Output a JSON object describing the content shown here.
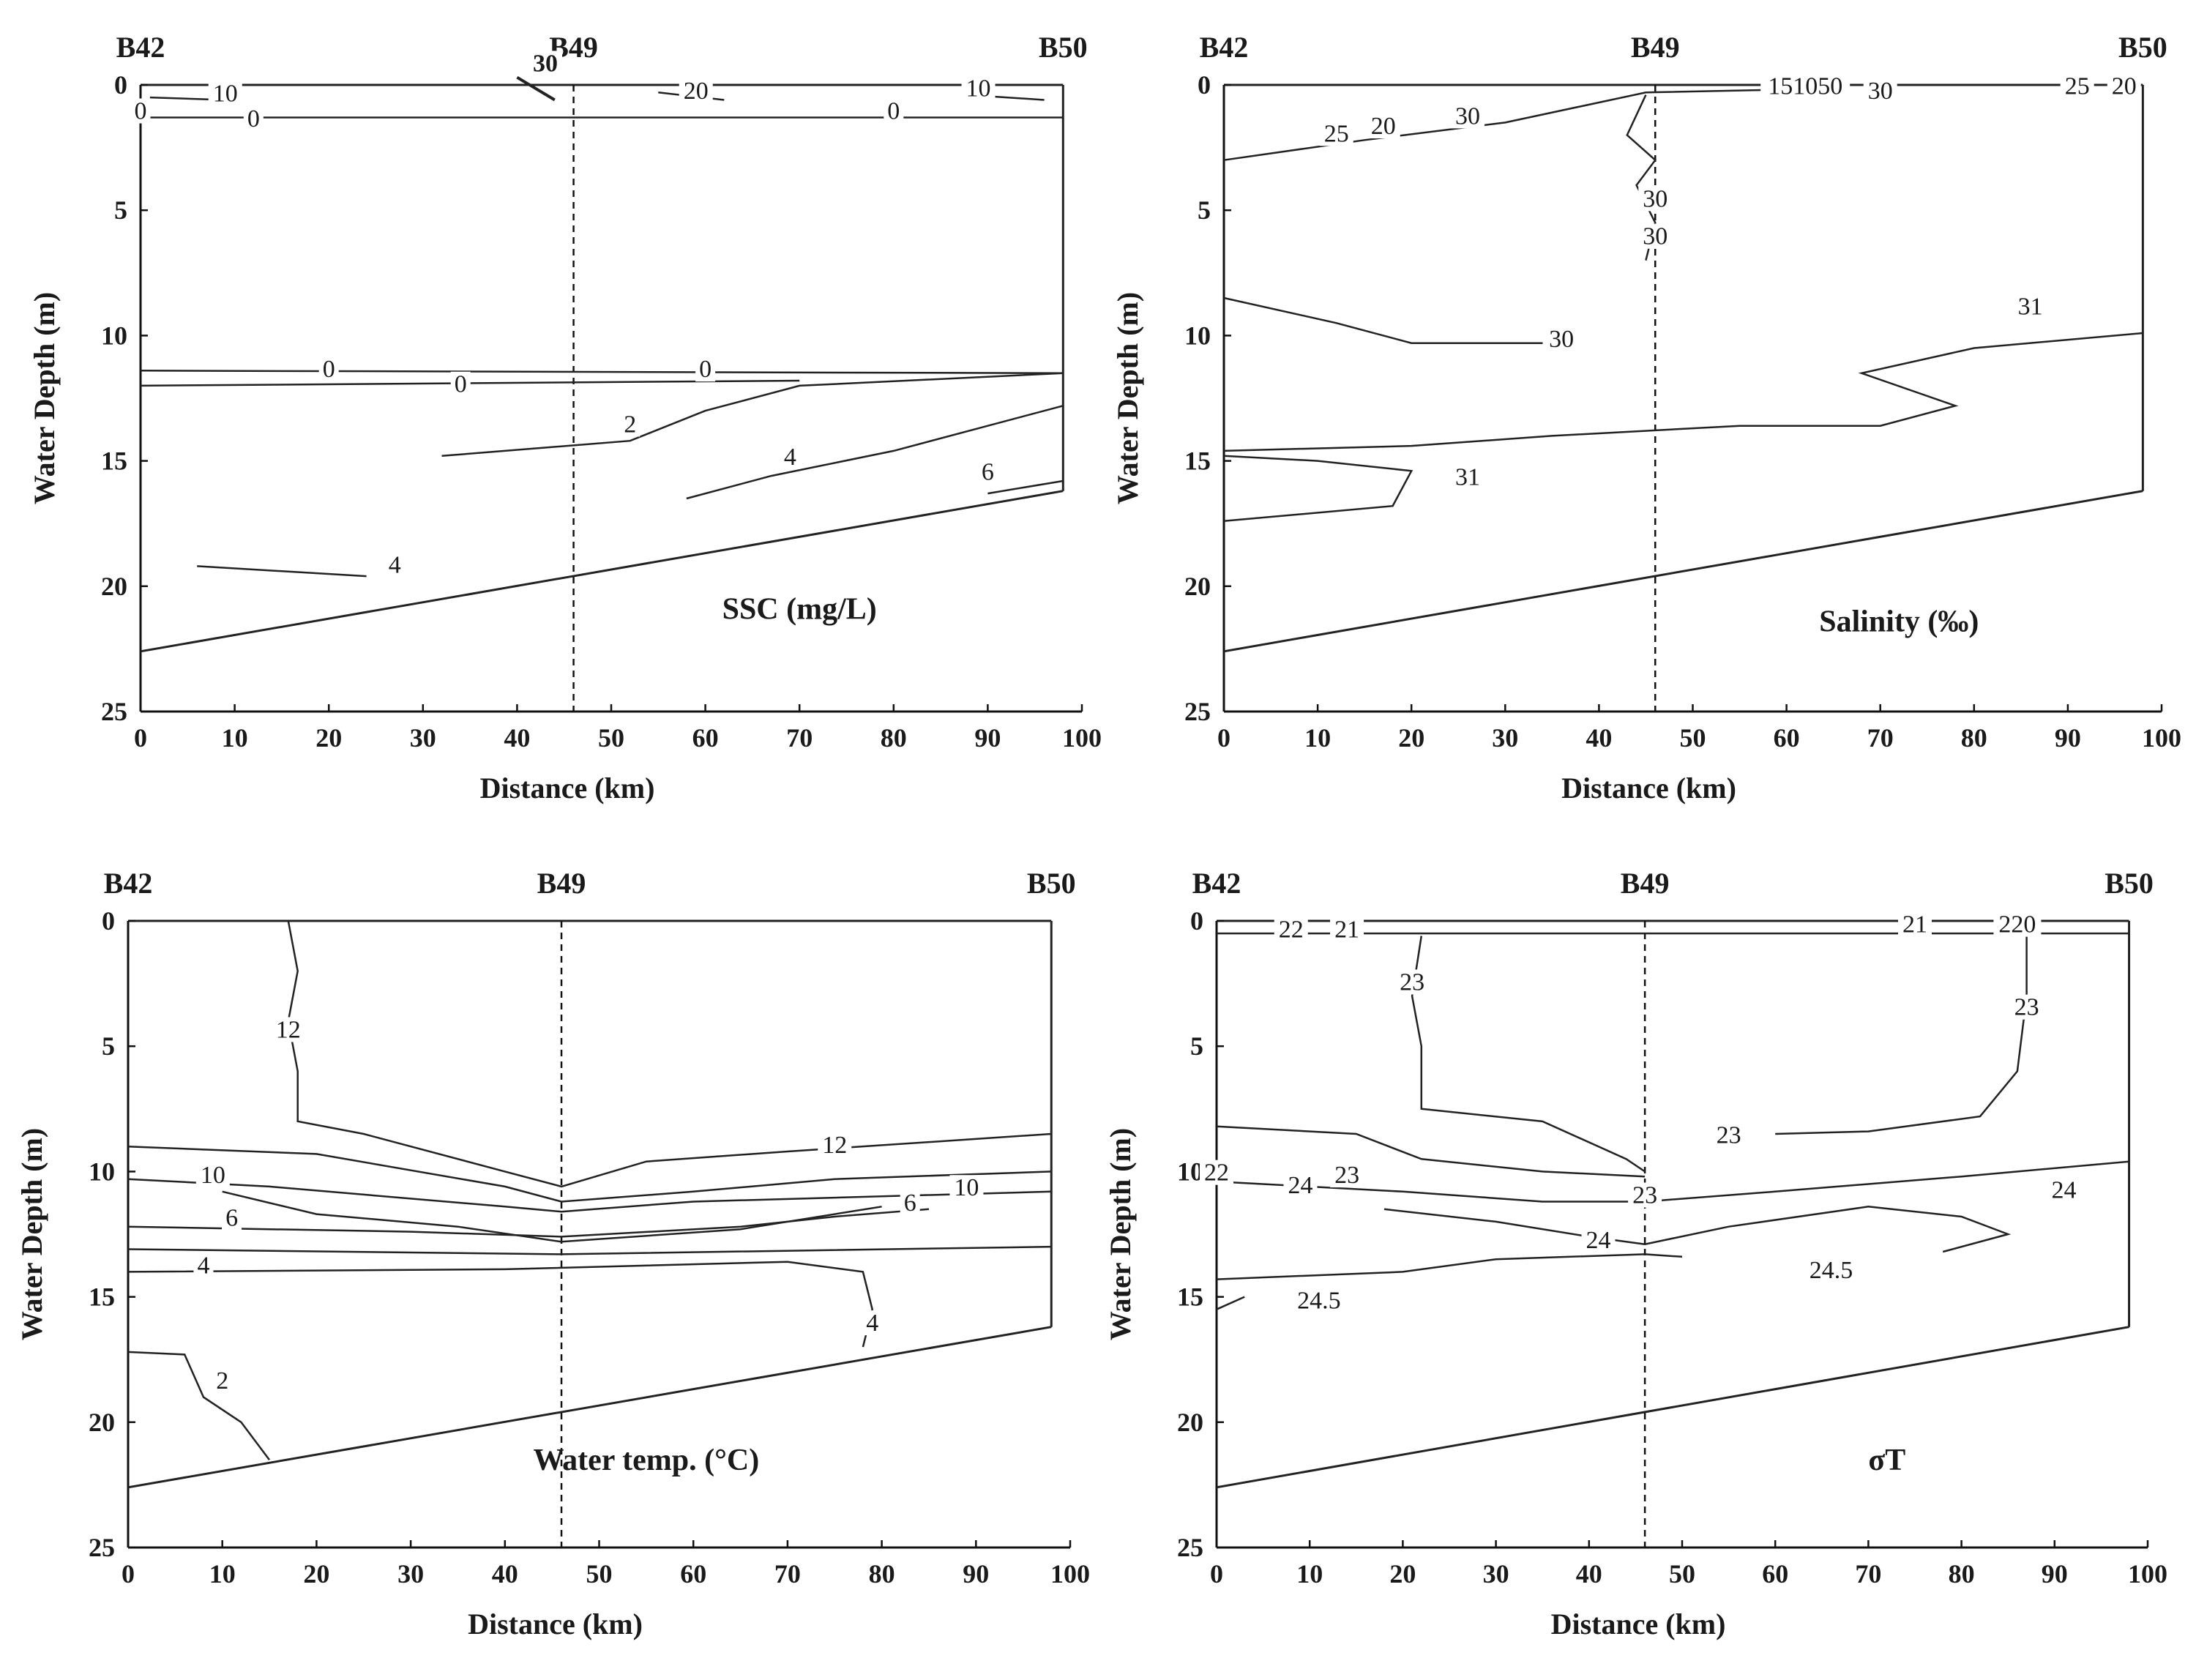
{
  "figure": {
    "x_axis_title": "Distance (km)",
    "y_axis_title": "Water Depth (m)",
    "x_ticks": [
      "0",
      "10",
      "20",
      "30",
      "40",
      "50",
      "60",
      "70",
      "80",
      "90",
      "100"
    ],
    "y_ticks": [
      "0",
      "5",
      "10",
      "15",
      "20",
      "25"
    ],
    "stations": [
      "B42",
      "B49",
      "B50"
    ]
  },
  "chart_data": [
    {
      "id": "ssc",
      "type": "contour",
      "title": "SSC (mg/L)",
      "xlabel": "Distance (km)",
      "ylabel": "Water Depth (m)",
      "xlim": [
        0,
        100
      ],
      "ylim": [
        25,
        0
      ],
      "stations": [
        {
          "name": "B42",
          "km": 0
        },
        {
          "name": "B49",
          "km": 46
        },
        {
          "name": "B50",
          "km": 98
        }
      ],
      "bottom": [
        [
          0,
          22.6
        ],
        [
          98,
          16.2
        ]
      ],
      "contours": [
        {
          "label": "30",
          "bold": true,
          "pts": [
            [
              40,
              -0.3
            ],
            [
              44,
              0.6
            ]
          ]
        },
        {
          "label": "10",
          "pts": [
            [
              1,
              0.5
            ],
            [
              9,
              0.6
            ]
          ]
        },
        {
          "label": "10",
          "pts": [
            [
              88,
              0.4
            ],
            [
              96,
              0.6
            ]
          ]
        },
        {
          "label": "20",
          "pts": [
            [
              55,
              0.3
            ],
            [
              62,
              0.6
            ]
          ]
        },
        {
          "label": "0",
          "pts": [
            [
              0,
              1.3
            ],
            [
              98,
              1.3
            ]
          ]
        },
        {
          "label": "0",
          "pts": [
            [
              0,
              11.4
            ],
            [
              98,
              11.5
            ]
          ]
        },
        {
          "label": "0",
          "pts": [
            [
              0,
              12.0
            ],
            [
              70,
              11.8
            ]
          ]
        },
        {
          "label": "2",
          "pts": [
            [
              32,
              14.8
            ],
            [
              52,
              14.2
            ],
            [
              60,
              13.0
            ],
            [
              70,
              12.0
            ],
            [
              98,
              11.5
            ]
          ]
        },
        {
          "label": "4",
          "pts": [
            [
              58,
              16.5
            ],
            [
              67,
              15.6
            ],
            [
              80,
              14.6
            ],
            [
              98,
              12.8
            ]
          ]
        },
        {
          "label": "6",
          "pts": [
            [
              90,
              16.3
            ],
            [
              98,
              15.8
            ]
          ]
        },
        {
          "label": "4",
          "pts": [
            [
              6,
              19.2
            ],
            [
              24,
              19.6
            ]
          ]
        }
      ],
      "label_points": [
        {
          "text": "30",
          "km": 43,
          "depth": -0.6,
          "bold": true
        },
        {
          "text": "10",
          "km": 9,
          "depth": 0.6
        },
        {
          "text": "20",
          "km": 59,
          "depth": 0.5
        },
        {
          "text": "10",
          "km": 89,
          "depth": 0.4
        },
        {
          "text": "0",
          "km": 0,
          "depth": 1.3
        },
        {
          "text": "0",
          "km": 12,
          "depth": 1.6
        },
        {
          "text": "0",
          "km": 80,
          "depth": 1.3
        },
        {
          "text": "0",
          "km": 20,
          "depth": 11.6
        },
        {
          "text": "0",
          "km": 34,
          "depth": 12.2
        },
        {
          "text": "0",
          "km": 60,
          "depth": 11.6
        },
        {
          "text": "2",
          "km": 52,
          "depth": 13.8
        },
        {
          "text": "4",
          "km": 69,
          "depth": 15.1
        },
        {
          "text": "6",
          "km": 90,
          "depth": 15.7
        },
        {
          "text": "4",
          "km": 27,
          "depth": 19.4
        }
      ]
    },
    {
      "id": "salinity",
      "type": "contour",
      "title": "Salinity (‰)",
      "xlabel": "Distance (km)",
      "ylabel": "Water Depth (m)",
      "xlim": [
        0,
        100
      ],
      "ylim": [
        25,
        0
      ],
      "stations": [
        {
          "name": "B42",
          "km": 0
        },
        {
          "name": "B49",
          "km": 46
        },
        {
          "name": "B50",
          "km": 98
        }
      ],
      "bottom": [
        [
          0,
          22.6
        ],
        [
          98,
          16.2
        ]
      ],
      "contours": [
        {
          "label": "25",
          "pts": [
            [
              0,
              3.0
            ],
            [
              15,
              2.2
            ],
            [
              30,
              1.5
            ],
            [
              45,
              0.3
            ],
            [
              58,
              0.2
            ]
          ]
        },
        {
          "label": "30",
          "pts": [
            [
              45,
              0.4
            ],
            [
              43,
              2
            ],
            [
              46,
              3
            ],
            [
              44,
              4
            ],
            [
              46,
              5.5
            ],
            [
              45,
              7
            ]
          ]
        },
        {
          "label": "30",
          "pts": [
            [
              0,
              8.5
            ],
            [
              12,
              9.5
            ],
            [
              20,
              10.3
            ],
            [
              34,
              10.3
            ]
          ]
        },
        {
          "label": "31",
          "pts": [
            [
              0,
              14.6
            ],
            [
              20,
              14.4
            ],
            [
              35,
              14.0
            ],
            [
              55,
              13.6
            ],
            [
              70,
              13.6
            ],
            [
              78,
              12.8
            ],
            [
              68,
              11.5
            ],
            [
              80,
              10.5
            ],
            [
              98,
              9.9
            ]
          ]
        },
        {
          "label": "31",
          "pts": [
            [
              0,
              17.4
            ],
            [
              18,
              16.8
            ],
            [
              20,
              15.4
            ],
            [
              10,
              15.0
            ],
            [
              0,
              14.8
            ]
          ]
        }
      ],
      "label_points": [
        {
          "text": "151050",
          "km": 62,
          "depth": 0.3
        },
        {
          "text": "30",
          "km": 70,
          "depth": 0.5
        },
        {
          "text": "25",
          "km": 91,
          "depth": 0.3
        },
        {
          "text": "20",
          "km": 96,
          "depth": 0.3
        },
        {
          "text": "25",
          "km": 12,
          "depth": 2.2
        },
        {
          "text": "20",
          "km": 17,
          "depth": 1.9
        },
        {
          "text": "30",
          "km": 26,
          "depth": 1.5
        },
        {
          "text": "30",
          "km": 46,
          "depth": 4.8
        },
        {
          "text": "30",
          "km": 46,
          "depth": 6.3
        },
        {
          "text": "30",
          "km": 36,
          "depth": 10.4
        },
        {
          "text": "31",
          "km": 86,
          "depth": 9.1
        },
        {
          "text": "31",
          "km": 26,
          "depth": 15.9
        }
      ]
    },
    {
      "id": "temperature",
      "type": "contour",
      "title": "Water temp. (°C)",
      "xlabel": "Distance (km)",
      "ylabel": "Water Depth (m)",
      "xlim": [
        0,
        100
      ],
      "ylim": [
        25,
        0
      ],
      "stations": [
        {
          "name": "B42",
          "km": 0
        },
        {
          "name": "B49",
          "km": 46
        },
        {
          "name": "B50",
          "km": 98
        }
      ],
      "bottom": [
        [
          0,
          22.6
        ],
        [
          98,
          16.2
        ]
      ],
      "contours": [
        {
          "label": "12",
          "pts": [
            [
              17,
              0
            ],
            [
              18,
              2
            ],
            [
              17,
              4
            ],
            [
              18,
              6
            ],
            [
              18,
              8
            ],
            [
              25,
              8.5
            ],
            [
              40,
              10.0
            ],
            [
              46,
              10.6
            ],
            [
              55,
              9.6
            ],
            [
              70,
              9.2
            ],
            [
              98,
              8.5
            ]
          ]
        },
        {
          "label": "10",
          "pts": [
            [
              0,
              9.0
            ],
            [
              20,
              9.3
            ],
            [
              40,
              10.6
            ],
            [
              46,
              11.2
            ],
            [
              60,
              10.8
            ],
            [
              75,
              10.3
            ],
            [
              98,
              10.0
            ]
          ]
        },
        {
          "label": "10",
          "pts": [
            [
              0,
              10.3
            ],
            [
              15,
              10.6
            ],
            [
              40,
              11.4
            ],
            [
              46,
              11.6
            ],
            [
              60,
              11.2
            ],
            [
              98,
              10.8
            ]
          ]
        },
        {
          "label": "6",
          "pts": [
            [
              0,
              12.2
            ],
            [
              15,
              12.3
            ],
            [
              30,
              12.4
            ],
            [
              46,
              12.6
            ],
            [
              65,
              12.2
            ],
            [
              75,
              11.8
            ],
            [
              85,
              11.5
            ]
          ]
        },
        {
          "label": "6",
          "pts": [
            [
              10,
              10.8
            ],
            [
              20,
              11.7
            ],
            [
              35,
              12.2
            ],
            [
              46,
              12.8
            ],
            [
              65,
              12.3
            ],
            [
              80,
              11.4
            ]
          ]
        },
        {
          "label": "4",
          "pts": [
            [
              0,
              13.1
            ],
            [
              46,
              13.3
            ],
            [
              98,
              13.0
            ]
          ]
        },
        {
          "label": "4",
          "pts": [
            [
              0,
              14.0
            ],
            [
              40,
              13.9
            ],
            [
              70,
              13.6
            ],
            [
              78,
              14.0
            ],
            [
              79,
              15.5
            ],
            [
              78,
              17.0
            ]
          ]
        },
        {
          "label": "2",
          "pts": [
            [
              0,
              17.2
            ],
            [
              6,
              17.3
            ],
            [
              8,
              19
            ],
            [
              12,
              20
            ],
            [
              15,
              21.5
            ]
          ]
        }
      ],
      "label_points": [
        {
          "text": "12",
          "km": 17,
          "depth": 4.6
        },
        {
          "text": "12",
          "km": 75,
          "depth": 9.2
        },
        {
          "text": "10",
          "km": 9,
          "depth": 10.4
        },
        {
          "text": "10",
          "km": 89,
          "depth": 10.9
        },
        {
          "text": "6",
          "km": 11,
          "depth": 12.1
        },
        {
          "text": "6",
          "km": 83,
          "depth": 11.5
        },
        {
          "text": "4",
          "km": 8,
          "depth": 14.0
        },
        {
          "text": "4",
          "km": 79,
          "depth": 16.3
        },
        {
          "text": "2",
          "km": 10,
          "depth": 18.6
        }
      ]
    },
    {
      "id": "sigma_t",
      "type": "contour",
      "title": "σT",
      "xlabel": "Distance (km)",
      "ylabel": "Water Depth (m)",
      "xlim": [
        0,
        100
      ],
      "ylim": [
        25,
        0
      ],
      "stations": [
        {
          "name": "B42",
          "km": 0
        },
        {
          "name": "B49",
          "km": 46
        },
        {
          "name": "B50",
          "km": 98
        }
      ],
      "bottom": [
        [
          0,
          22.6
        ],
        [
          98,
          16.2
        ]
      ],
      "contours": [
        {
          "label": "21",
          "pts": [
            [
              0,
              0.5
            ],
            [
              98,
              0.5
            ]
          ]
        },
        {
          "label": "23",
          "pts": [
            [
              22,
              0.6
            ],
            [
              21,
              3
            ],
            [
              22,
              5
            ],
            [
              22,
              7.5
            ],
            [
              35,
              8.0
            ],
            [
              44,
              9.5
            ],
            [
              46,
              10.0
            ]
          ]
        },
        {
          "label": "23",
          "pts": [
            [
              87,
              0.6
            ],
            [
              87,
              3
            ],
            [
              86,
              6
            ],
            [
              82,
              7.8
            ],
            [
              70,
              8.4
            ],
            [
              60,
              8.5
            ]
          ]
        },
        {
          "label": "22",
          "pts": [
            [
              0,
              8.2
            ],
            [
              15,
              8.5
            ],
            [
              22,
              9.5
            ],
            [
              35,
              10.0
            ],
            [
              46,
              10.2
            ]
          ]
        },
        {
          "label": "24",
          "pts": [
            [
              0,
              10.4
            ],
            [
              20,
              10.8
            ],
            [
              35,
              11.2
            ],
            [
              46,
              11.2
            ],
            [
              60,
              10.8
            ],
            [
              80,
              10.2
            ],
            [
              98,
              9.6
            ]
          ]
        },
        {
          "label": "24",
          "pts": [
            [
              18,
              11.5
            ],
            [
              30,
              12.0
            ],
            [
              40,
              12.6
            ],
            [
              46,
              12.9
            ],
            [
              55,
              12.2
            ],
            [
              70,
              11.4
            ],
            [
              80,
              11.8
            ],
            [
              85,
              12.5
            ],
            [
              78,
              13.2
            ]
          ]
        },
        {
          "label": "24.5",
          "pts": [
            [
              0,
              14.3
            ],
            [
              20,
              14.0
            ],
            [
              30,
              13.5
            ],
            [
              46,
              13.3
            ],
            [
              50,
              13.4
            ]
          ]
        },
        {
          "label": "24.5",
          "pts": [
            [
              0,
              15.5
            ],
            [
              3,
              15.0
            ]
          ]
        }
      ],
      "label_points": [
        {
          "text": "22",
          "km": 8,
          "depth": 0.6
        },
        {
          "text": "21",
          "km": 14,
          "depth": 0.6
        },
        {
          "text": "21",
          "km": 75,
          "depth": 0.4
        },
        {
          "text": "220",
          "km": 86,
          "depth": 0.4
        },
        {
          "text": "23",
          "km": 21,
          "depth": 2.7
        },
        {
          "text": "23",
          "km": 87,
          "depth": 3.7
        },
        {
          "text": "23",
          "km": 55,
          "depth": 8.8
        },
        {
          "text": "22",
          "km": 0,
          "depth": 10.3
        },
        {
          "text": "24",
          "km": 9,
          "depth": 10.8
        },
        {
          "text": "23",
          "km": 14,
          "depth": 10.4
        },
        {
          "text": "23",
          "km": 46,
          "depth": 11.2
        },
        {
          "text": "24",
          "km": 91,
          "depth": 11.0
        },
        {
          "text": "24",
          "km": 41,
          "depth": 13.0
        },
        {
          "text": "24.5",
          "km": 66,
          "depth": 14.2
        },
        {
          "text": "24.5",
          "km": 11,
          "depth": 15.4
        }
      ]
    }
  ]
}
